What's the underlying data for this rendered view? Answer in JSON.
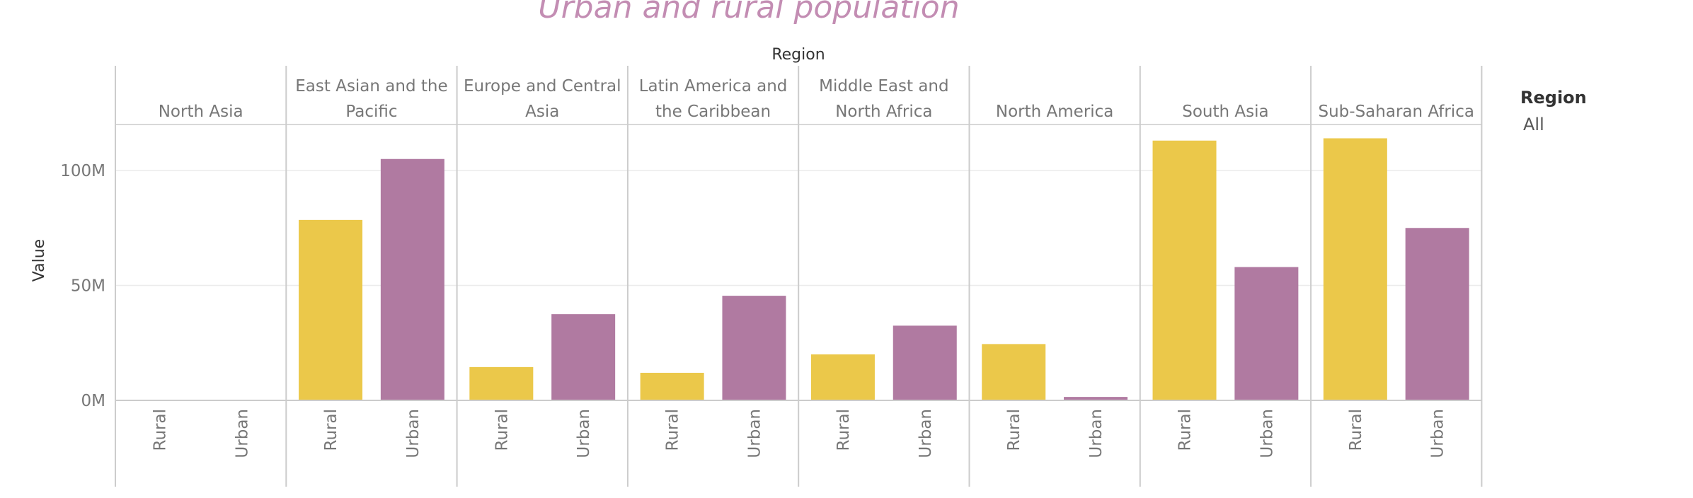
{
  "chart_data": {
    "type": "bar",
    "title": "Urban and rural population",
    "column_header": "Region",
    "ylabel": "Value",
    "ylim": [
      0,
      120000000
    ],
    "yticks": [
      {
        "value": 0,
        "label": "0M"
      },
      {
        "value": 50000000,
        "label": "50M"
      },
      {
        "value": 100000000,
        "label": "100M"
      }
    ],
    "categories": [
      "Rural",
      "Urban"
    ],
    "panels": [
      {
        "label": [
          "North Asia"
        ],
        "values": [
          0,
          0
        ]
      },
      {
        "label": [
          "East Asian and the",
          "Pacific"
        ],
        "values": [
          78500000,
          105000000
        ]
      },
      {
        "label": [
          "Europe and Central",
          "Asia"
        ],
        "values": [
          14500000,
          37500000
        ]
      },
      {
        "label": [
          "Latin America and",
          "the Caribbean"
        ],
        "values": [
          12000000,
          45500000
        ]
      },
      {
        "label": [
          "Middle East and",
          "North Africa"
        ],
        "values": [
          20000000,
          32500000
        ]
      },
      {
        "label": [
          "North America"
        ],
        "values": [
          24500000,
          1500000
        ]
      },
      {
        "label": [
          "South Asia"
        ],
        "values": [
          113000000,
          58000000
        ]
      },
      {
        "label": [
          "Sub-Saharan Africa"
        ],
        "values": [
          114000000,
          75000000
        ]
      }
    ],
    "colors": {
      "Rural": "#ebc84a",
      "Urban": "#b07aa1",
      "title": "#c38db3"
    },
    "grid": true
  },
  "legend": {
    "title": "Region",
    "value": "All"
  }
}
